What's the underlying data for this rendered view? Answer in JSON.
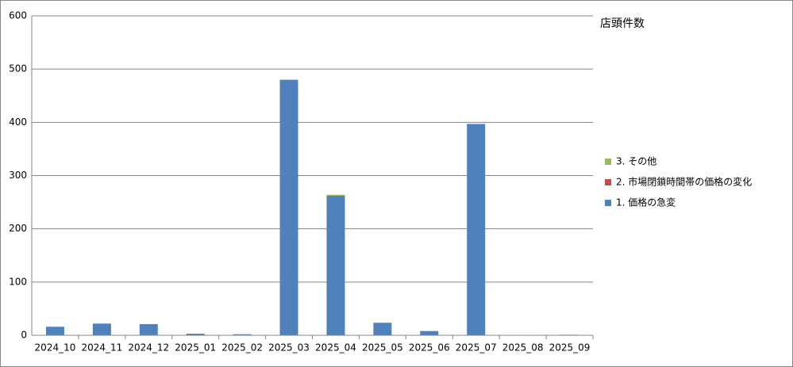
{
  "chart_data": {
    "type": "stacked-bar",
    "title": "店頭件数",
    "categories": [
      "2024_10",
      "2024_11",
      "2024_12",
      "2025_01",
      "2025_02",
      "2025_03",
      "2025_04",
      "2025_05",
      "2025_06",
      "2025_07",
      "2025_08",
      "2025_09"
    ],
    "series": [
      {
        "name": "1. 価格の急変",
        "color": "#4f81bd",
        "values": [
          16,
          22,
          21,
          3,
          2,
          480,
          262,
          23,
          8,
          397,
          0,
          1
        ]
      },
      {
        "name": "2. 市場閉鎖時間帯の価格の変化",
        "color": "#c0504d",
        "values": [
          0,
          0,
          0,
          0,
          0,
          0,
          0,
          0,
          0,
          0,
          0,
          0
        ]
      },
      {
        "name": "3. その他",
        "color": "#9bbb59",
        "values": [
          0,
          0,
          0,
          0,
          0,
          0,
          2,
          1,
          0,
          0,
          0,
          0
        ]
      }
    ],
    "ylim": [
      0,
      600
    ],
    "yticks": [
      0,
      100,
      200,
      300,
      400,
      500,
      600
    ],
    "grid": true,
    "legend": "right"
  }
}
